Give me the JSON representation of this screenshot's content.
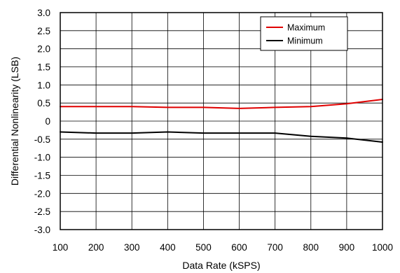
{
  "chart_data": {
    "type": "line",
    "title": "",
    "xlabel": "Data Rate (kSPS)",
    "ylabel": "Differential Nonlinearity (LSB)",
    "xlim": [
      100,
      1000
    ],
    "ylim": [
      -3.0,
      3.0
    ],
    "x_ticks": [
      100,
      200,
      300,
      400,
      500,
      600,
      700,
      800,
      900,
      1000
    ],
    "x_tick_labels": [
      "100",
      "200",
      "300",
      "400",
      "500",
      "600",
      "700",
      "800",
      "900",
      "1000"
    ],
    "y_ticks": [
      3.0,
      2.5,
      2.0,
      1.5,
      1.0,
      0.5,
      0,
      -0.5,
      -1.0,
      -1.5,
      -2.0,
      -2.5,
      -3.0
    ],
    "y_tick_labels": [
      "3.0",
      "2.5",
      "2.0",
      "1.5",
      "1.0",
      "0.5",
      "0",
      "-0.5",
      "-1.0",
      "-1.5",
      "-2.0",
      "-2.5",
      "-3.0"
    ],
    "grid": true,
    "legend_position": "top-right",
    "x": [
      100,
      200,
      300,
      400,
      500,
      600,
      700,
      800,
      900,
      1000
    ],
    "series": [
      {
        "name": "Maximum",
        "color": "#e00000",
        "values": [
          0.4,
          0.4,
          0.4,
          0.38,
          0.38,
          0.35,
          0.38,
          0.4,
          0.48,
          0.6
        ]
      },
      {
        "name": "Minimum",
        "color": "#000000",
        "values": [
          -0.3,
          -0.33,
          -0.33,
          -0.3,
          -0.33,
          -0.33,
          -0.33,
          -0.42,
          -0.47,
          -0.58
        ]
      }
    ]
  }
}
